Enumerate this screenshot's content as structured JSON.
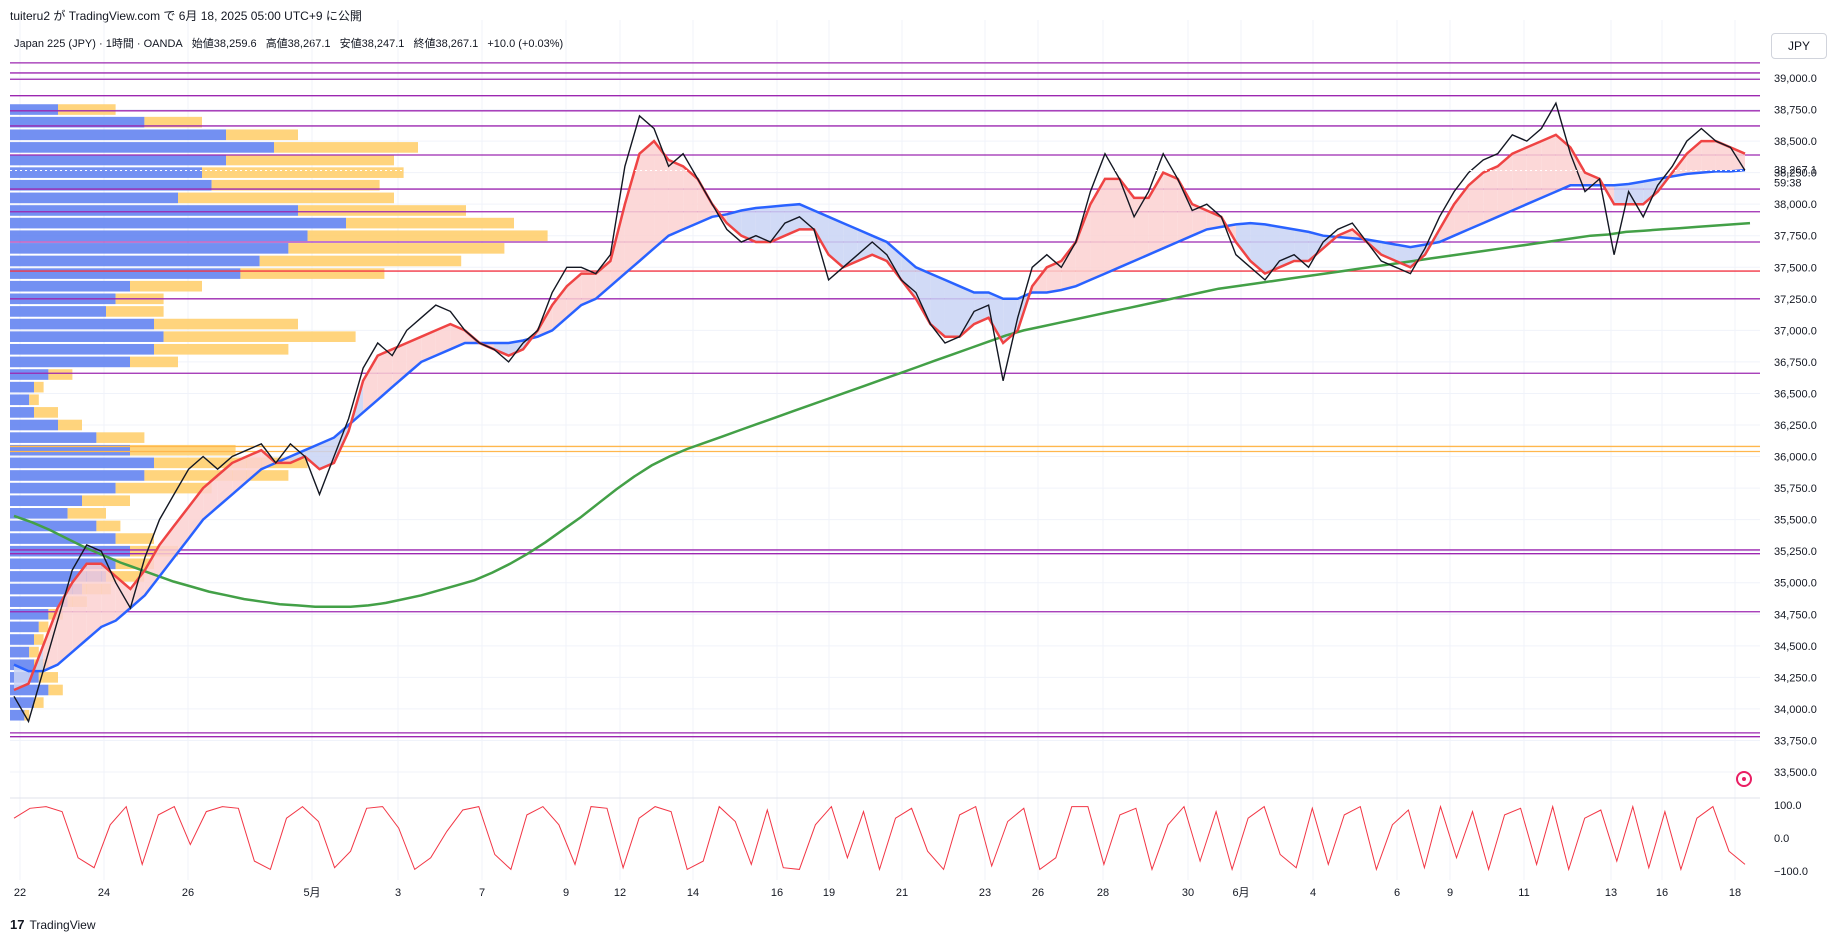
{
  "header": {
    "caption": "tuiteru2 が TradingView.com で 6月 18, 2025 05:00 UTC+9 に公開"
  },
  "legend": {
    "symbol": "Japan 225 (JPY) · 1時間 · OANDA",
    "open": "始値38,259.6",
    "high": "高値38,267.1",
    "low": "安値38,247.1",
    "close": "終値38,267.1",
    "change": "+10.0 (+0.03%)"
  },
  "currency": "JPY",
  "price_label": {
    "value": "38,267.1",
    "timer": "59:38"
  },
  "footer": {
    "brand": "TradingView",
    "brand_icon": "tradingview-logo-icon"
  },
  "icons": {
    "target": "target-icon"
  },
  "colors": {
    "price": "#131722",
    "ma_red": "#ef4444",
    "ma_blue": "#2962ff",
    "ma_green": "#43a047",
    "cloud_red": "#fbd1d1",
    "cloud_blue": "#c9d4f5",
    "hline_purple": "#9c27b0",
    "hline_red": "#f23645",
    "hline_orange": "#ffb74d",
    "vp_blue": "#5b7cf0",
    "vp_orange": "#ffcc66",
    "oscillator": "#f23645",
    "grid": "#f0f3fa"
  },
  "chart_data": [
    {
      "type": "line",
      "subtype": "candlestick-with-moving-averages",
      "x_ticks": [
        "22",
        "24",
        "26",
        "5月",
        "3",
        "7",
        "9",
        "12",
        "14",
        "16",
        "19",
        "21",
        "23",
        "26",
        "28",
        "30",
        "6月",
        "4",
        "6",
        "9",
        "11",
        "13",
        "16",
        "18"
      ],
      "y_ticks": [
        "33,500.0",
        "33,750.0",
        "34,000.0",
        "34,250.0",
        "34,500.0",
        "34,750.0",
        "35,000.0",
        "35,250.0",
        "35,500.0",
        "35,750.0",
        "36,000.0",
        "36,250.0",
        "36,500.0",
        "36,750.0",
        "37,000.0",
        "37,250.0",
        "37,500.0",
        "37,750.0",
        "38,000.0",
        "38,250.0",
        "38,500.0",
        "38,750.0",
        "39,000.0"
      ],
      "ylim": [
        33400,
        39150
      ],
      "series": [
        {
          "key": "price",
          "values": [
            34100,
            33900,
            34300,
            34700,
            35100,
            35300,
            35250,
            35000,
            34800,
            35200,
            35500,
            35700,
            35900,
            36000,
            35900,
            36000,
            36050,
            36100,
            35950,
            36100,
            36000,
            35700,
            36000,
            36300,
            36700,
            36900,
            36800,
            37000,
            37100,
            37200,
            37150,
            37000,
            36900,
            36850,
            36750,
            36900,
            37000,
            37300,
            37500,
            37500,
            37450,
            37600,
            38300,
            38700,
            38600,
            38300,
            38400,
            38200,
            38000,
            37800,
            37700,
            37750,
            37700,
            37850,
            37900,
            37800,
            37400,
            37500,
            37600,
            37700,
            37600,
            37400,
            37300,
            37050,
            36900,
            36950,
            37150,
            37200,
            36600,
            37100,
            37500,
            37600,
            37500,
            37700,
            38100,
            38400,
            38200,
            37900,
            38100,
            38400,
            38200,
            37950,
            38000,
            37900,
            37600,
            37500,
            37400,
            37550,
            37600,
            37500,
            37700,
            37800,
            37850,
            37700,
            37550,
            37500,
            37450,
            37650,
            37900,
            38100,
            38250,
            38350,
            38400,
            38550,
            38500,
            38600,
            38800,
            38400,
            38100,
            38200,
            37600,
            38100,
            37900,
            38150,
            38300,
            38500,
            38600,
            38500,
            38450,
            38267.1
          ]
        },
        {
          "key": "ma-red",
          "values": [
            34150,
            34200,
            34500,
            34800,
            35000,
            35150,
            35150,
            35050,
            34950,
            35100,
            35300,
            35450,
            35600,
            35750,
            35850,
            35950,
            36000,
            36050,
            35950,
            35950,
            36000,
            35900,
            35950,
            36200,
            36600,
            36800,
            36850,
            36900,
            36950,
            37000,
            37050,
            37000,
            36900,
            36850,
            36800,
            36850,
            37000,
            37200,
            37350,
            37450,
            37450,
            37550,
            38000,
            38400,
            38500,
            38350,
            38300,
            38200,
            38000,
            37850,
            37750,
            37700,
            37700,
            37750,
            37800,
            37800,
            37600,
            37500,
            37550,
            37600,
            37550,
            37400,
            37250,
            37050,
            36950,
            36950,
            37050,
            37100,
            36900,
            37000,
            37350,
            37500,
            37550,
            37700,
            38000,
            38200,
            38200,
            38050,
            38050,
            38250,
            38200,
            38000,
            37950,
            37900,
            37700,
            37550,
            37450,
            37500,
            37550,
            37550,
            37650,
            37750,
            37800,
            37700,
            37600,
            37550,
            37500,
            37600,
            37800,
            38000,
            38150,
            38250,
            38300,
            38400,
            38450,
            38500,
            38550,
            38450,
            38250,
            38200,
            38000,
            38000,
            38000,
            38100,
            38250,
            38400,
            38500,
            38500,
            38450,
            38400
          ]
        },
        {
          "key": "ma-blue",
          "values": [
            34350,
            34300,
            34300,
            34350,
            34450,
            34550,
            34650,
            34700,
            34800,
            34900,
            35050,
            35200,
            35350,
            35500,
            35600,
            35700,
            35800,
            35900,
            35950,
            36000,
            36050,
            36100,
            36150,
            36250,
            36350,
            36450,
            36550,
            36650,
            36750,
            36800,
            36850,
            36900,
            36900,
            36900,
            36900,
            36920,
            36950,
            37000,
            37100,
            37200,
            37250,
            37350,
            37450,
            37550,
            37650,
            37750,
            37800,
            37850,
            37900,
            37920,
            37950,
            37970,
            37980,
            37990,
            38000,
            37950,
            37900,
            37850,
            37800,
            37750,
            37700,
            37600,
            37500,
            37450,
            37400,
            37350,
            37300,
            37300,
            37250,
            37250,
            37300,
            37300,
            37320,
            37350,
            37400,
            37450,
            37500,
            37550,
            37600,
            37650,
            37700,
            37750,
            37800,
            37820,
            37840,
            37850,
            37840,
            37820,
            37800,
            37780,
            37750,
            37740,
            37730,
            37720,
            37700,
            37680,
            37660,
            37680,
            37700,
            37750,
            37800,
            37850,
            37900,
            37950,
            38000,
            38050,
            38100,
            38150,
            38150,
            38150,
            38150,
            38160,
            38180,
            38200,
            38220,
            38240,
            38250,
            38260,
            38260,
            38270
          ]
        },
        {
          "key": "ma-green",
          "values": [
            35530,
            35480,
            35420,
            35350,
            35280,
            35220,
            35160,
            35110,
            35060,
            35010,
            34970,
            34930,
            34900,
            34870,
            34850,
            34830,
            34820,
            34810,
            34810,
            34810,
            34820,
            34840,
            34870,
            34900,
            34940,
            34980,
            35020,
            35080,
            35150,
            35230,
            35320,
            35420,
            35520,
            35630,
            35740,
            35840,
            35930,
            36000,
            36060,
            36110,
            36160,
            36210,
            36260,
            36310,
            36360,
            36410,
            36460,
            36510,
            36560,
            36610,
            36660,
            36710,
            36760,
            36810,
            36860,
            36910,
            36960,
            37000,
            37030,
            37060,
            37090,
            37120,
            37150,
            37180,
            37210,
            37240,
            37270,
            37300,
            37330,
            37350,
            37370,
            37390,
            37410,
            37430,
            37450,
            37470,
            37490,
            37510,
            37530,
            37550,
            37570,
            37590,
            37610,
            37630,
            37650,
            37670,
            37690,
            37710,
            37730,
            37750,
            37760,
            37780,
            37790,
            37800,
            37810,
            37820,
            37830,
            37840,
            37850
          ]
        }
      ],
      "horizontal_levels": [
        {
          "value": 39120,
          "color": "purple"
        },
        {
          "value": 39040,
          "color": "purple"
        },
        {
          "value": 38990,
          "color": "purple"
        },
        {
          "value": 38860,
          "color": "purple"
        },
        {
          "value": 38740,
          "color": "purple"
        },
        {
          "value": 38620,
          "color": "purple"
        },
        {
          "value": 38390,
          "color": "purple"
        },
        {
          "value": 38120,
          "color": "purple"
        },
        {
          "value": 37940,
          "color": "purple"
        },
        {
          "value": 37700,
          "color": "purple"
        },
        {
          "value": 37470,
          "color": "red"
        },
        {
          "value": 37250,
          "color": "purple"
        },
        {
          "value": 36660,
          "color": "purple"
        },
        {
          "value": 36080,
          "color": "orange"
        },
        {
          "value": 36040,
          "color": "orange"
        },
        {
          "value": 35260,
          "color": "purple"
        },
        {
          "value": 35230,
          "color": "purple"
        },
        {
          "value": 34770,
          "color": "purple"
        },
        {
          "value": 33810,
          "color": "purple"
        },
        {
          "value": 33780,
          "color": "purple"
        }
      ],
      "volume_profile": {
        "rows": [
          {
            "price": 38750,
            "blue": 0.1,
            "orange": 0.12
          },
          {
            "price": 38650,
            "blue": 0.28,
            "orange": 0.12
          },
          {
            "price": 38550,
            "blue": 0.45,
            "orange": 0.15
          },
          {
            "price": 38450,
            "blue": 0.55,
            "orange": 0.3
          },
          {
            "price": 38350,
            "blue": 0.45,
            "orange": 0.35
          },
          {
            "price": 38250,
            "blue": 0.4,
            "orange": 0.42
          },
          {
            "price": 38150,
            "blue": 0.42,
            "orange": 0.35
          },
          {
            "price": 38050,
            "blue": 0.35,
            "orange": 0.45
          },
          {
            "price": 37950,
            "blue": 0.6,
            "orange": 0.35
          },
          {
            "price": 37850,
            "blue": 0.7,
            "orange": 0.35
          },
          {
            "price": 37750,
            "blue": 0.62,
            "orange": 0.5
          },
          {
            "price": 37650,
            "blue": 0.58,
            "orange": 0.45
          },
          {
            "price": 37550,
            "blue": 0.52,
            "orange": 0.42
          },
          {
            "price": 37450,
            "blue": 0.48,
            "orange": 0.3
          },
          {
            "price": 37350,
            "blue": 0.25,
            "orange": 0.15
          },
          {
            "price": 37250,
            "blue": 0.22,
            "orange": 0.1
          },
          {
            "price": 37150,
            "blue": 0.2,
            "orange": 0.12
          },
          {
            "price": 37050,
            "blue": 0.3,
            "orange": 0.3
          },
          {
            "price": 36950,
            "blue": 0.32,
            "orange": 0.4
          },
          {
            "price": 36850,
            "blue": 0.3,
            "orange": 0.28
          },
          {
            "price": 36750,
            "blue": 0.25,
            "orange": 0.1
          },
          {
            "price": 36650,
            "blue": 0.08,
            "orange": 0.05
          },
          {
            "price": 36550,
            "blue": 0.05,
            "orange": 0.02
          },
          {
            "price": 36450,
            "blue": 0.04,
            "orange": 0.02
          },
          {
            "price": 36350,
            "blue": 0.05,
            "orange": 0.05
          },
          {
            "price": 36250,
            "blue": 0.1,
            "orange": 0.05
          },
          {
            "price": 36150,
            "blue": 0.18,
            "orange": 0.1
          },
          {
            "price": 36050,
            "blue": 0.25,
            "orange": 0.22
          },
          {
            "price": 35950,
            "blue": 0.3,
            "orange": 0.32
          },
          {
            "price": 35850,
            "blue": 0.28,
            "orange": 0.3
          },
          {
            "price": 35750,
            "blue": 0.22,
            "orange": 0.2
          },
          {
            "price": 35650,
            "blue": 0.15,
            "orange": 0.1
          },
          {
            "price": 35550,
            "blue": 0.12,
            "orange": 0.08
          },
          {
            "price": 35450,
            "blue": 0.18,
            "orange": 0.05
          },
          {
            "price": 35350,
            "blue": 0.22,
            "orange": 0.08
          },
          {
            "price": 35250,
            "blue": 0.25,
            "orange": 0.1
          },
          {
            "price": 35150,
            "blue": 0.22,
            "orange": 0.08
          },
          {
            "price": 35050,
            "blue": 0.2,
            "orange": 0.08
          },
          {
            "price": 34950,
            "blue": 0.15,
            "orange": 0.06
          },
          {
            "price": 34850,
            "blue": 0.12,
            "orange": 0.04
          },
          {
            "price": 34750,
            "blue": 0.08,
            "orange": 0.03
          },
          {
            "price": 34650,
            "blue": 0.06,
            "orange": 0.02
          },
          {
            "price": 34550,
            "blue": 0.05,
            "orange": 0.02
          },
          {
            "price": 34450,
            "blue": 0.04,
            "orange": 0.02
          },
          {
            "price": 34350,
            "blue": 0.05,
            "orange": 0.03
          },
          {
            "price": 34250,
            "blue": 0.06,
            "orange": 0.04
          },
          {
            "price": 34150,
            "blue": 0.08,
            "orange": 0.03
          },
          {
            "price": 34050,
            "blue": 0.05,
            "orange": 0.02
          },
          {
            "price": 33950,
            "blue": 0.03,
            "orange": 0.01
          }
        ]
      }
    },
    {
      "type": "line",
      "subtype": "oscillator",
      "y_ticks": [
        "100.0",
        "0.0",
        "−100.0"
      ],
      "ylim": [
        -120,
        120
      ],
      "values": [
        60,
        90,
        95,
        80,
        -60,
        -90,
        40,
        95,
        -80,
        70,
        95,
        -20,
        80,
        95,
        90,
        -70,
        -95,
        60,
        95,
        50,
        -90,
        -40,
        90,
        95,
        30,
        -95,
        -60,
        20,
        85,
        95,
        -50,
        -95,
        70,
        95,
        40,
        -80,
        95,
        90,
        -90,
        60,
        95,
        80,
        -95,
        -70,
        95,
        50,
        -80,
        85,
        -90,
        -95,
        40,
        95,
        -60,
        80,
        -95,
        60,
        90,
        -40,
        -95,
        70,
        95,
        -85,
        50,
        90,
        -95,
        -60,
        95,
        95,
        -80,
        70,
        90,
        -95,
        40,
        95,
        -70,
        80,
        -95,
        60,
        95,
        -50,
        -90,
        90,
        -80,
        70,
        95,
        -95,
        40,
        85,
        -90,
        95,
        -60,
        80,
        -95,
        70,
        90,
        -80,
        95,
        -95,
        60,
        85,
        -70,
        95,
        -90,
        80,
        -95,
        60,
        95,
        -40,
        -80
      ]
    }
  ]
}
